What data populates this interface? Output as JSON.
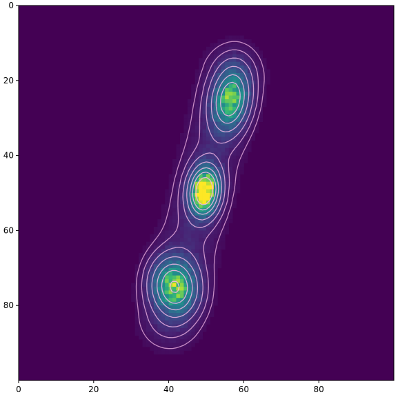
{
  "chart_data": {
    "type": "heatmap",
    "colormap": "viridis",
    "background_color": "#440154",
    "contour_color": "#f2b6e6",
    "xlim": [
      0,
      100
    ],
    "ylim": [
      100,
      0
    ],
    "x_ticks": [
      0,
      20,
      40,
      60,
      80
    ],
    "y_ticks": [
      0,
      20,
      40,
      60,
      80
    ],
    "x_tick_labels": [
      "0",
      "20",
      "40",
      "60",
      "80"
    ],
    "y_tick_labels": [
      "0",
      "20",
      "40",
      "60",
      "80"
    ],
    "grid": false,
    "blobs": [
      {
        "name": "upper",
        "x": 56.5,
        "y": 25,
        "sx": 3.2,
        "sy": 5.5,
        "rot": 0.15,
        "peak": 0.68
      },
      {
        "name": "middle",
        "x": 49.5,
        "y": 49.5,
        "sx": 2.6,
        "sy": 4.2,
        "rot": 0.1,
        "peak": 1.0
      },
      {
        "name": "lower",
        "x": 41.5,
        "y": 75,
        "sx": 4.0,
        "sy": 5.0,
        "rot": -0.2,
        "peak": 0.72
      }
    ],
    "ridge": {
      "from": [
        57,
        18
      ],
      "to": [
        40,
        84
      ],
      "width": 5.5,
      "level": 0.12
    },
    "contour_levels": [
      0.05,
      0.1,
      0.18,
      0.3,
      0.45,
      0.6,
      0.8
    ]
  }
}
